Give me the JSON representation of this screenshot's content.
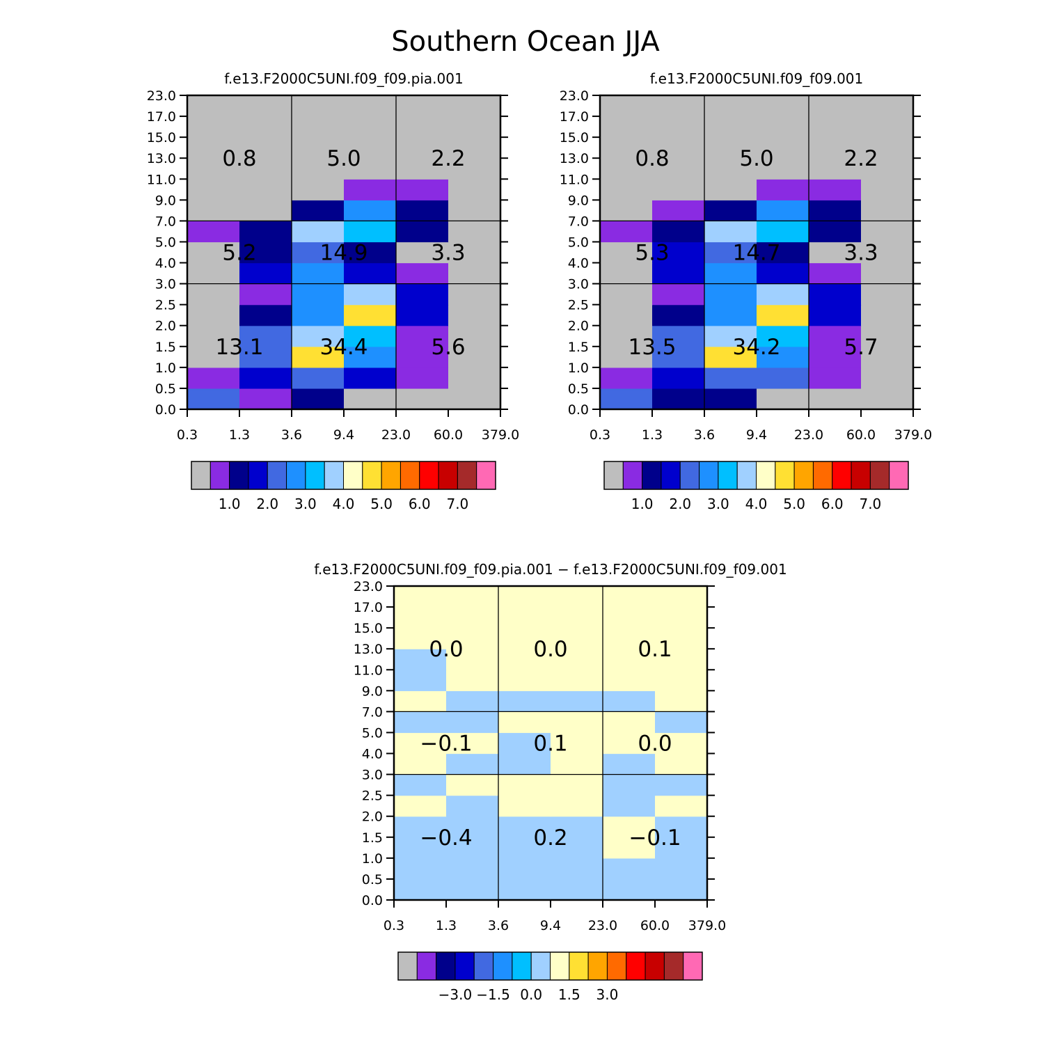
{
  "title": "Southern Ocean JJA",
  "colors": {
    "palette": [
      "#bebebe",
      "#8a2be2",
      "#00008b",
      "#0000cd",
      "#4169e1",
      "#1e90ff",
      "#00bfff",
      "#a0d0ff",
      "#ffffc8",
      "#ffe033",
      "#ffa500",
      "#ff6a00",
      "#ff0000",
      "#c80000",
      "#a52a2a",
      "#ff69b4"
    ],
    "grid_line": "#000000"
  },
  "chart_data": [
    {
      "type": "heatmap",
      "title": "f.e13.F2000C5UNI.f09_f09.pia.001",
      "x_ticks": [
        "0.3",
        "1.3",
        "3.6",
        "9.4",
        "23.0",
        "60.0",
        "379.0"
      ],
      "y_ticks": [
        "0.0",
        "0.5",
        "1.0",
        "1.5",
        "2.0",
        "2.5",
        "3.0",
        "4.0",
        "5.0",
        "7.0",
        "9.0",
        "11.0",
        "13.0",
        "15.0",
        "17.0",
        "23.0"
      ],
      "cell_color_index_rows_bottom_to_top": [
        [
          4,
          1,
          2,
          0,
          0,
          0
        ],
        [
          1,
          3,
          4,
          3,
          1,
          0
        ],
        [
          0,
          4,
          9,
          5,
          1,
          0
        ],
        [
          0,
          4,
          7,
          6,
          1,
          0
        ],
        [
          0,
          2,
          5,
          9,
          3,
          0
        ],
        [
          0,
          1,
          5,
          7,
          3,
          0
        ],
        [
          0,
          3,
          5,
          3,
          1,
          0
        ],
        [
          0,
          2,
          4,
          2,
          0,
          0
        ],
        [
          1,
          2,
          7,
          6,
          2,
          0
        ],
        [
          0,
          0,
          2,
          5,
          2,
          0
        ],
        [
          0,
          0,
          0,
          1,
          1,
          0
        ],
        [
          0,
          0,
          0,
          0,
          0,
          0
        ],
        [
          0,
          0,
          0,
          0,
          0,
          0
        ],
        [
          0,
          0,
          0,
          0,
          0,
          0
        ],
        [
          0,
          0,
          0,
          0,
          0,
          0
        ]
      ],
      "region_values_bottom_to_top": [
        [
          "13.1",
          "34.4",
          "5.6"
        ],
        [
          "5.2",
          "14.9",
          "3.3"
        ],
        [
          "0.8",
          "5.0",
          "2.2"
        ]
      ],
      "colorbar": {
        "labels": [
          "1.0",
          "2.0",
          "3.0",
          "4.0",
          "5.0",
          "6.0",
          "7.0"
        ]
      }
    },
    {
      "type": "heatmap",
      "title": "f.e13.F2000C5UNI.f09_f09.001",
      "x_ticks": [
        "0.3",
        "1.3",
        "3.6",
        "9.4",
        "23.0",
        "60.0",
        "379.0"
      ],
      "y_ticks": [
        "0.0",
        "0.5",
        "1.0",
        "1.5",
        "2.0",
        "2.5",
        "3.0",
        "4.0",
        "5.0",
        "7.0",
        "9.0",
        "11.0",
        "13.0",
        "15.0",
        "17.0",
        "23.0"
      ],
      "cell_color_index_rows_bottom_to_top": [
        [
          4,
          2,
          2,
          0,
          0,
          0
        ],
        [
          1,
          3,
          4,
          4,
          1,
          0
        ],
        [
          0,
          4,
          9,
          5,
          1,
          0
        ],
        [
          0,
          4,
          7,
          6,
          1,
          0
        ],
        [
          0,
          2,
          5,
          9,
          3,
          0
        ],
        [
          0,
          1,
          5,
          7,
          3,
          0
        ],
        [
          0,
          3,
          5,
          3,
          1,
          0
        ],
        [
          0,
          3,
          4,
          2,
          0,
          0
        ],
        [
          1,
          2,
          7,
          6,
          2,
          0
        ],
        [
          0,
          1,
          2,
          5,
          2,
          0
        ],
        [
          0,
          0,
          0,
          1,
          1,
          0
        ],
        [
          0,
          0,
          0,
          0,
          0,
          0
        ],
        [
          0,
          0,
          0,
          0,
          0,
          0
        ],
        [
          0,
          0,
          0,
          0,
          0,
          0
        ],
        [
          0,
          0,
          0,
          0,
          0,
          0
        ]
      ],
      "region_values_bottom_to_top": [
        [
          "13.5",
          "34.2",
          "5.7"
        ],
        [
          "5.3",
          "14.7",
          "3.3"
        ],
        [
          "0.8",
          "5.0",
          "2.2"
        ]
      ],
      "colorbar": {
        "labels": [
          "1.0",
          "2.0",
          "3.0",
          "4.0",
          "5.0",
          "6.0",
          "7.0"
        ]
      }
    },
    {
      "type": "heatmap",
      "title": "f.e13.F2000C5UNI.f09_f09.pia.001 − f.e13.F2000C5UNI.f09_f09.001",
      "x_ticks": [
        "0.3",
        "1.3",
        "3.6",
        "9.4",
        "23.0",
        "60.0",
        "379.0"
      ],
      "y_ticks": [
        "0.0",
        "0.5",
        "1.0",
        "1.5",
        "2.0",
        "2.5",
        "3.0",
        "4.0",
        "5.0",
        "7.0",
        "9.0",
        "11.0",
        "13.0",
        "15.0",
        "17.0",
        "23.0"
      ],
      "cell_color_index_rows_bottom_to_top": [
        [
          7,
          7,
          7,
          7,
          7,
          7
        ],
        [
          7,
          7,
          7,
          7,
          7,
          7
        ],
        [
          7,
          7,
          7,
          7,
          8,
          7
        ],
        [
          7,
          7,
          7,
          7,
          8,
          7
        ],
        [
          8,
          7,
          8,
          8,
          7,
          8
        ],
        [
          7,
          8,
          8,
          8,
          7,
          7
        ],
        [
          8,
          7,
          7,
          8,
          7,
          8
        ],
        [
          8,
          8,
          7,
          8,
          8,
          8
        ],
        [
          7,
          7,
          8,
          8,
          8,
          7
        ],
        [
          8,
          7,
          7,
          7,
          7,
          8
        ],
        [
          7,
          8,
          8,
          8,
          8,
          8
        ],
        [
          7,
          8,
          8,
          8,
          8,
          8
        ],
        [
          8,
          8,
          8,
          8,
          8,
          8
        ],
        [
          8,
          8,
          8,
          8,
          8,
          8
        ],
        [
          8,
          8,
          8,
          8,
          8,
          8
        ]
      ],
      "region_values_bottom_to_top": [
        [
          "−0.4",
          "0.2",
          "−0.1"
        ],
        [
          "−0.1",
          "0.1",
          "0.0"
        ],
        [
          "0.0",
          "0.0",
          "0.1"
        ]
      ],
      "colorbar": {
        "labels": [
          "−3.0",
          "−1.5",
          "0.0",
          "1.5",
          "3.0"
        ]
      }
    }
  ]
}
